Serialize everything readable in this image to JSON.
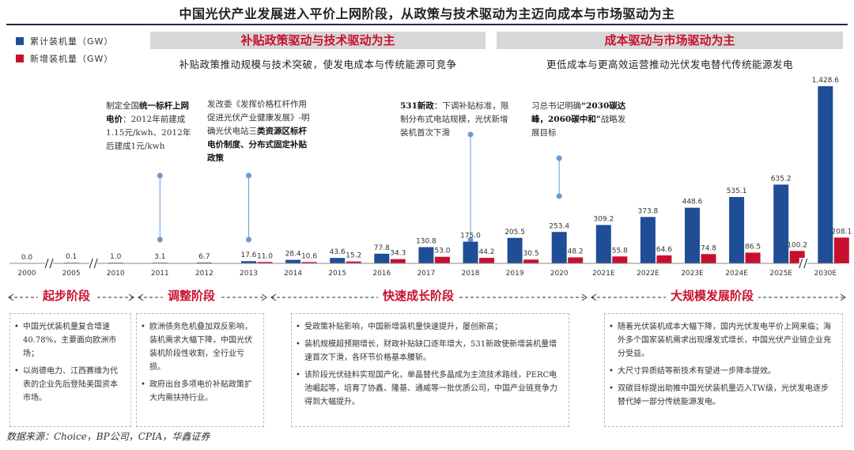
{
  "title": "中国光伏产业发展进入平价上网阶段，从政策与技术驱动为主迈向成本与市场驱动为主",
  "colors": {
    "cumulative": "#1f4e96",
    "new": "#c8102e",
    "accent": "#c8102e",
    "banner_bg": "#d7d7d7"
  },
  "banners": {
    "left": {
      "heading": "补贴政策驱动与技术驱动为主",
      "sub": "补贴政策推动规模与技术突破，使发电成本与传统能源可竞争"
    },
    "right": {
      "heading": "成本驱动与市场驱动为主",
      "sub": "更低成本与更高效运营推动光伏发电替代传统能源发电"
    }
  },
  "annotations": {
    "a2012": {
      "text1": "制定全国",
      "bold1": "统一标杆上网电价",
      "text2": "：2012年前建成1.15元/kwh、2012年后建成1元/kwh"
    },
    "a2013": {
      "text1": "发改委《发挥价格杠杆作用促进光伏产业健康发展》-明确光伏电站三",
      "bold1": "类资源区标杆电价制度、分布式固定补贴政策"
    },
    "a2018": {
      "bold1": "531新政",
      "text1": "：下调补贴标准，限制分布式电站规模，光伏新增装机首次下滑"
    },
    "a2020": {
      "text1": "习总书记明确",
      "bold1": "“2030碳达峰，2060碳中和”",
      "text2": "战略发展目标"
    }
  },
  "phases": [
    {
      "name": "起步阶段",
      "bullets": [
        "中国光伏装机量复合增速40.78%，主要面向欧洲市场；",
        "以尚德电力、江西赛维为代表的企业先后登陆美国资本市场。"
      ]
    },
    {
      "name": "调整阶段",
      "bullets": [
        "欧洲债务危机叠加双反影响，装机需求大幅下降，中国光伏装机阶段性收割，全行业亏损。",
        "政府出台多项电价补贴政策扩大内需扶持行业。"
      ]
    },
    {
      "name": "快速成长阶段",
      "bullets": [
        "受政策补贴影响，中国新增装机量快速提升，屡创新高；",
        "装机规模超预期增长，财政补贴缺口逐年增大，531新政使新增装机量增速首次下滑，各环节价格基本腰斩。",
        "该阶段光伏硅料实现国产化，单晶替代多晶成为主流技术路线，PERC电池崛起等，培育了协鑫、隆基、通威等一批优质公司，中国产业链竞争力得到大幅提升。"
      ]
    },
    {
      "name": "大规模发展阶段",
      "bullets": [
        "随着光伏装机成本大幅下降，国内光伏发电平价上网来临；海外多个国家装机需求出现爆发式增长，中国光伏产业链企业充分受益。",
        "大尺寸异质结等新技术有望进一步降本提效。",
        "双碳目标提出助推中国光伏装机量迈入TW级，光伏发电逐步替代掉一部分传统能源发电。"
      ]
    }
  ],
  "source": "数据来源：Choice，BP公司，CPIA，华鑫证券",
  "chart_data": {
    "type": "bar",
    "categories": [
      "2000",
      "2005",
      "2010",
      "2011",
      "2012",
      "2013",
      "2014",
      "2015",
      "2016",
      "2017",
      "2018",
      "2019",
      "2020",
      "2021E",
      "2022E",
      "2023E",
      "2024E",
      "2025E",
      "2030E"
    ],
    "series": [
      {
        "name": "累计装机量（GW）",
        "values": [
          0.0,
          0.1,
          1.0,
          3.1,
          6.7,
          17.6,
          28.4,
          43.6,
          77.8,
          130.8,
          175.0,
          205.5,
          253.4,
          309.2,
          373.8,
          448.6,
          535.1,
          635.2,
          1428.6
        ]
      },
      {
        "name": "新增装机量（GW）",
        "values": [
          null,
          null,
          null,
          null,
          null,
          11.0,
          10.6,
          15.2,
          34.3,
          53.0,
          44.2,
          30.5,
          48.2,
          55.8,
          64.6,
          74.8,
          86.5,
          100.2,
          208.1
        ]
      }
    ],
    "labels_cumulative": [
      "0.0",
      "0.1",
      "1.0",
      "3.1",
      "6.7",
      "17.6",
      "28.4",
      "43.6",
      "77.8",
      "130.8",
      "175.0",
      "205.5",
      "253.4",
      "309.2",
      "373.8",
      "448.6",
      "535.1",
      "635.2",
      "1,428.6"
    ],
    "labels_new": [
      "",
      "",
      "",
      "",
      "",
      "11.0",
      "10.6",
      "15.2",
      "34.3",
      "53.0",
      "44.2",
      "30.5",
      "48.2",
      "55.8",
      "64.6",
      "74.8",
      "86.5",
      "100.2",
      "208.1"
    ],
    "axis_breaks_after": [
      "2000",
      "2005",
      "2025E"
    ]
  }
}
